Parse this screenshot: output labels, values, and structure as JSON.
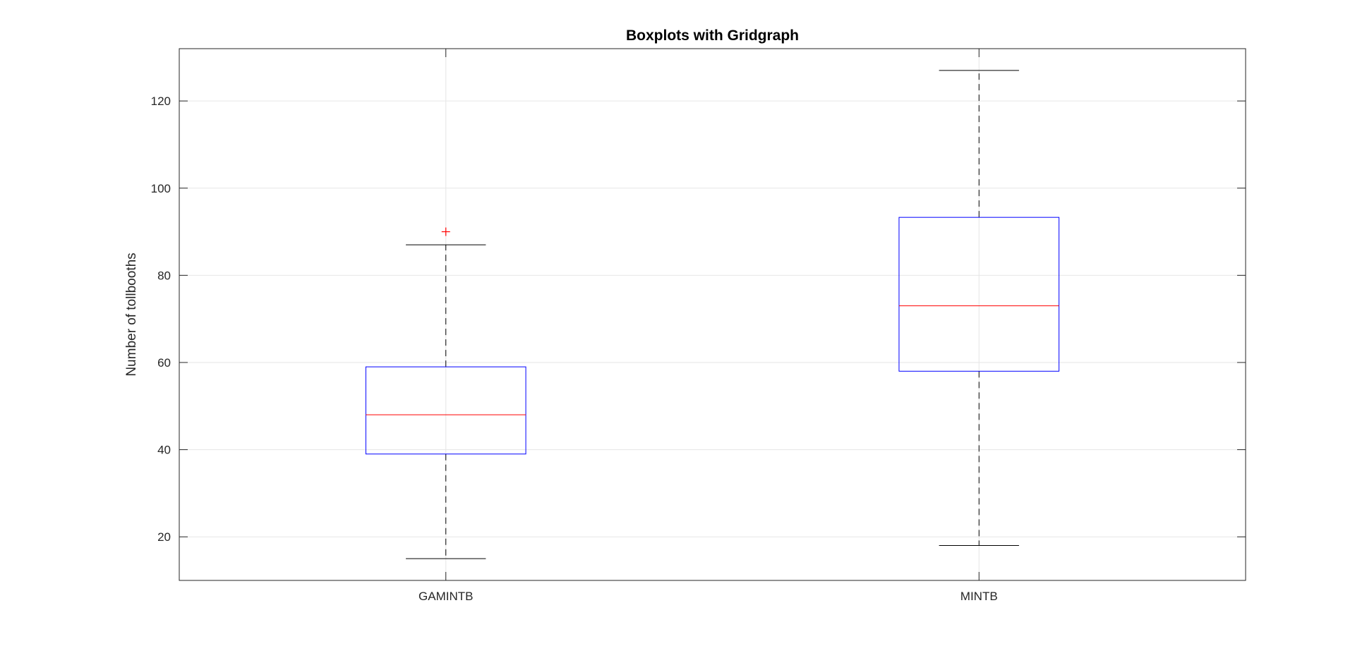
{
  "chart_data": {
    "type": "boxplot",
    "title": "Boxplots with Gridgraph",
    "xlabel": "",
    "ylabel": "Number of tollbooths",
    "ylim": [
      10,
      132
    ],
    "yticks": [
      20,
      40,
      60,
      80,
      100,
      120
    ],
    "grid": true,
    "categories": [
      "GAMINTB",
      "MINTB"
    ],
    "boxes": [
      {
        "category": "GAMINTB",
        "whisker_low": 15,
        "q1": 39,
        "median": 48,
        "q3": 59,
        "whisker_high": 87,
        "outliers": [
          90
        ]
      },
      {
        "category": "MINTB",
        "whisker_low": 18,
        "q1": 58,
        "median": 73,
        "q3": 93.3,
        "whisker_high": 127,
        "outliers": []
      }
    ],
    "colors": {
      "box": "#0000ff",
      "median": "#ff0000",
      "whisker": "#000000",
      "outlier": "#ff0000",
      "grid": "#e6e6e6",
      "axes": "#262626"
    }
  }
}
